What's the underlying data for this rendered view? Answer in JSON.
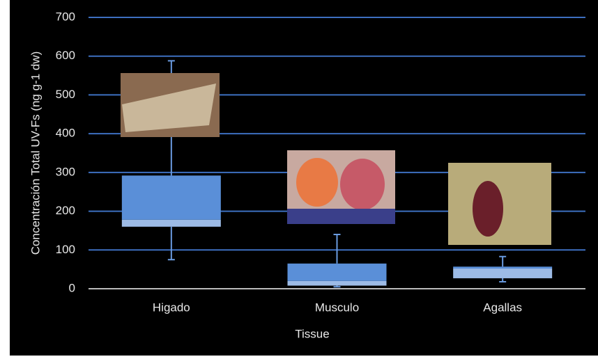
{
  "chart_data": {
    "type": "box",
    "y_label": "Concentración  Total UV-Fs (ng g-1 dw)",
    "x_label": "Tissue",
    "categories": [
      "Higado",
      "Musculo",
      "Agallas"
    ],
    "min": [
      75,
      5,
      18
    ],
    "q1": [
      160,
      8,
      27
    ],
    "median": [
      178,
      20,
      52
    ],
    "q3": [
      292,
      65,
      57
    ],
    "max": [
      588,
      140,
      83
    ],
    "color": "#5a8fd8",
    "lower_color": "#9dbbe6",
    "whisker_color": "#6a9be0",
    "ylim": [
      0,
      700
    ],
    "yticks": [
      0,
      100,
      200,
      300,
      400,
      500,
      600,
      700
    ],
    "grid": true,
    "grid_color": "#3d6fc0"
  }
}
